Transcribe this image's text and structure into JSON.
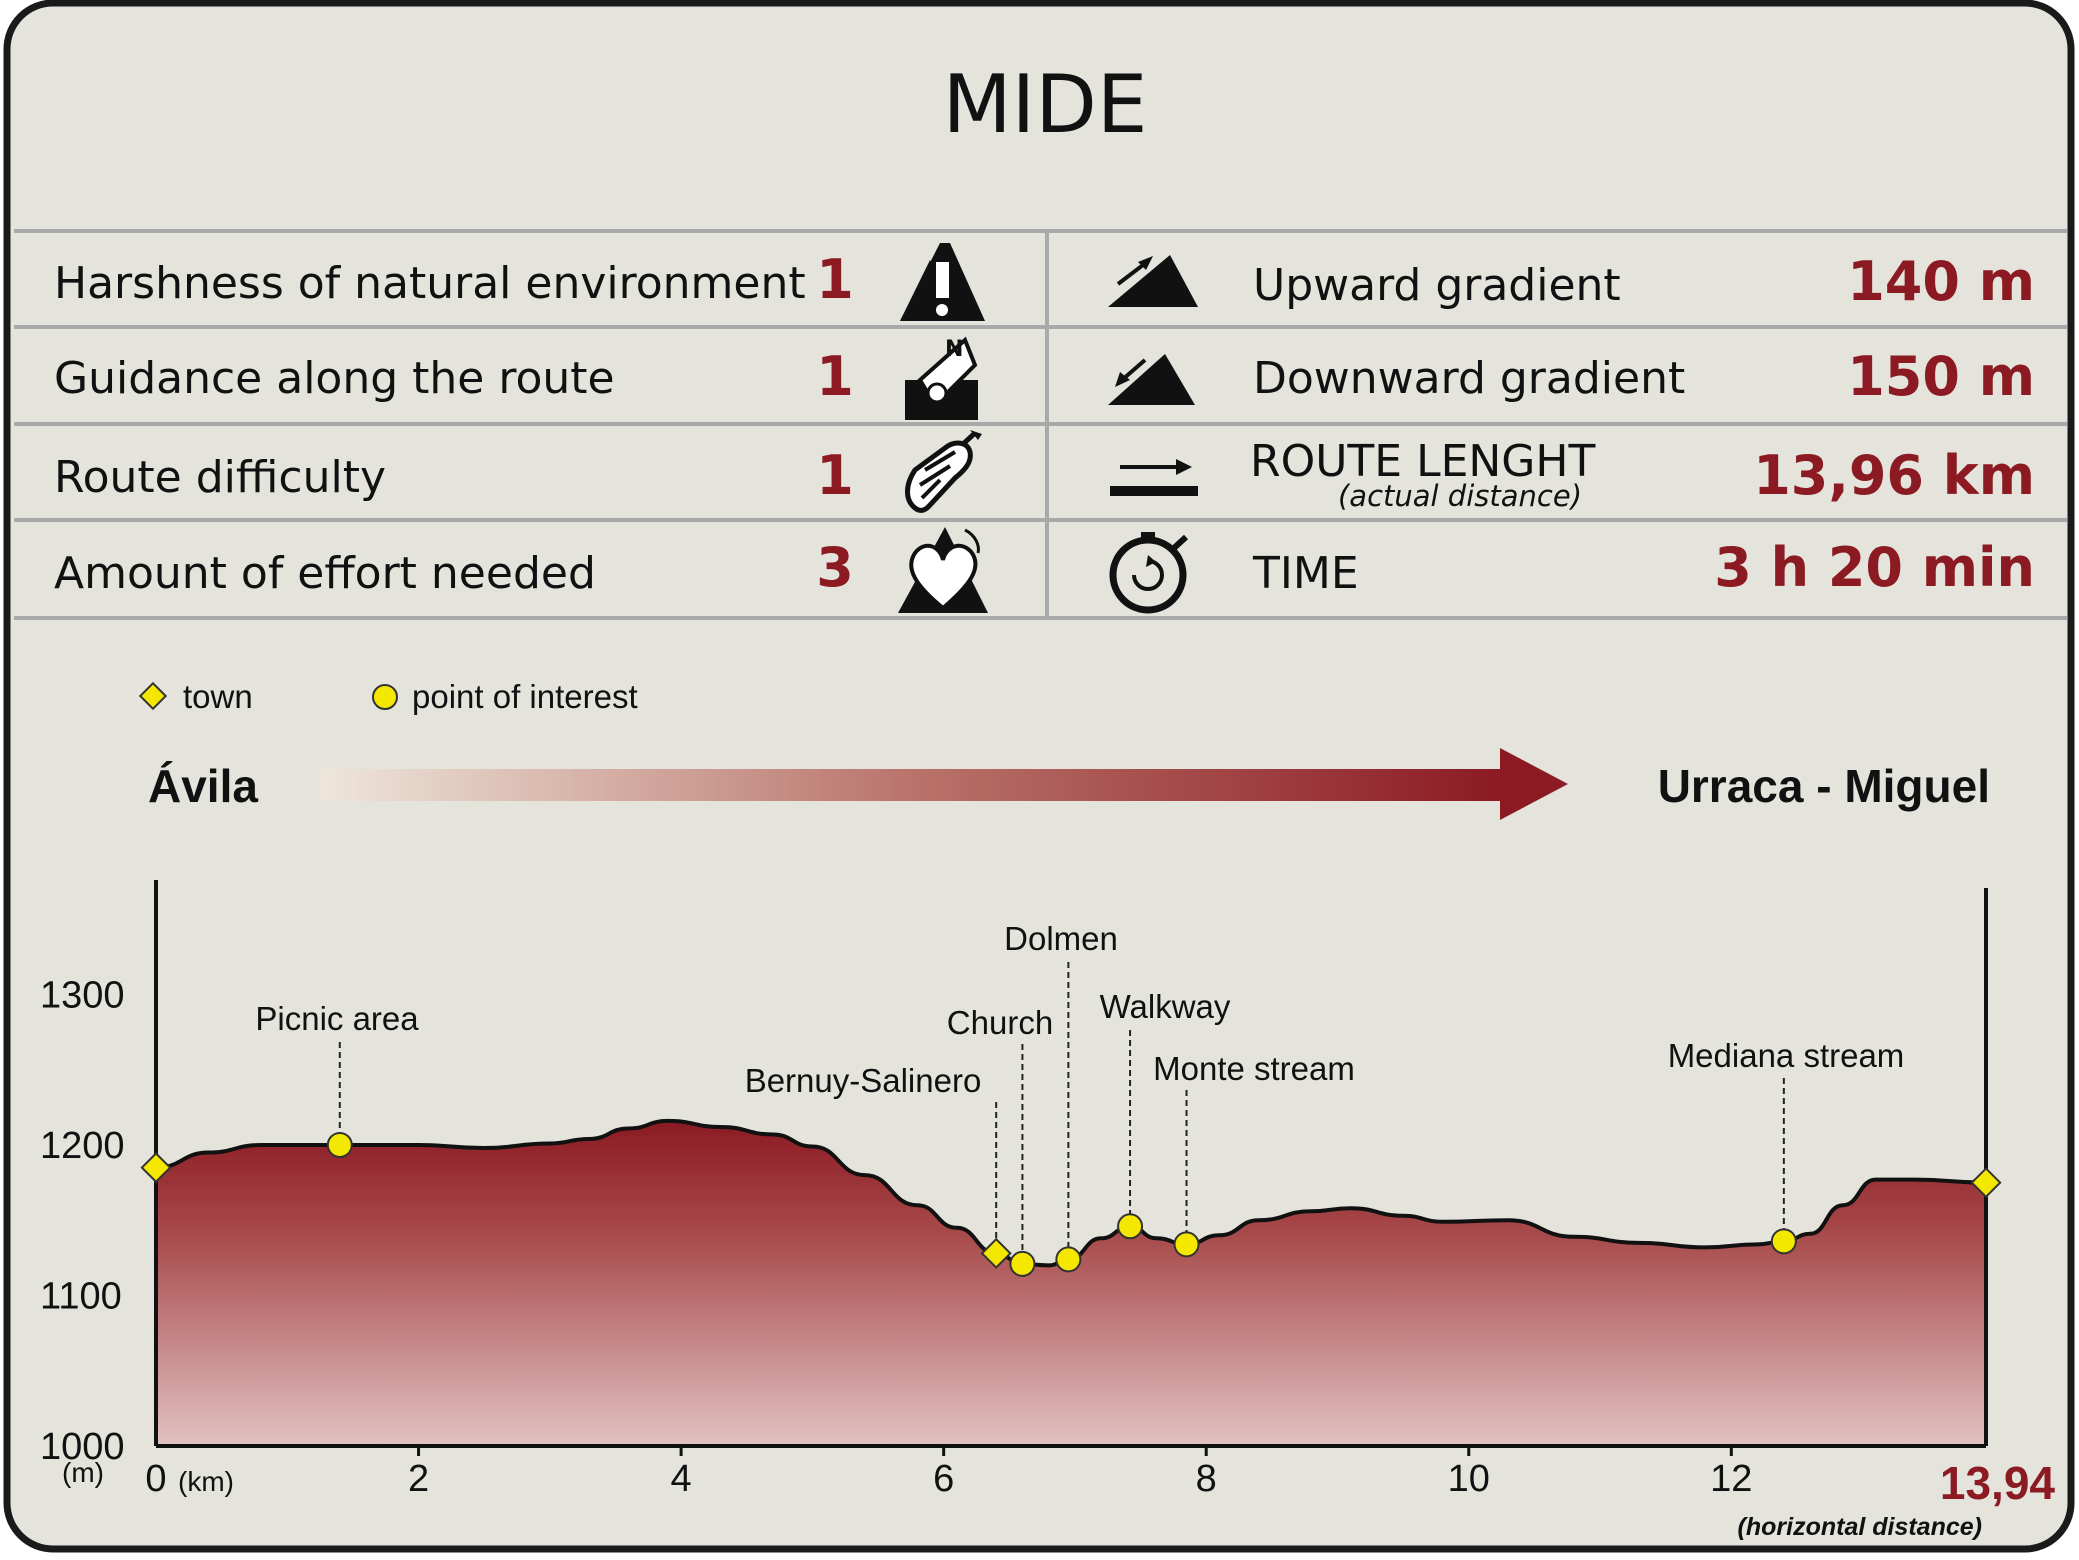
{
  "title": "MIDE",
  "mide": {
    "left": [
      {
        "label": "Harshness of natural environment",
        "value": "1",
        "icon": "warning-mountain-icon"
      },
      {
        "label": "Guidance along the route",
        "value": "1",
        "icon": "compass-signpost-icon"
      },
      {
        "label": "Route difficulty",
        "value": "1",
        "icon": "boot-footprint-icon"
      },
      {
        "label": "Amount of effort needed",
        "value": "3",
        "icon": "heart-mountain-icon"
      }
    ],
    "right": [
      {
        "label": "Upward gradient",
        "sublabel": "",
        "value": "140 m",
        "icon": "upward-gradient-icon"
      },
      {
        "label": "Downward gradient",
        "sublabel": "",
        "value": "150 m",
        "icon": "downward-gradient-icon"
      },
      {
        "label": "ROUTE LENGHT",
        "sublabel": "(actual distance)",
        "value": "13,96 km",
        "icon": "route-length-arrow-icon"
      },
      {
        "label": "TIME",
        "sublabel": "",
        "value": "3 h 20 min",
        "icon": "stopwatch-icon"
      }
    ]
  },
  "legend": {
    "town": "town",
    "poi": "point of interest"
  },
  "route": {
    "start": "Ávila",
    "end": "Urraca - Miguel"
  },
  "colors": {
    "accent": "#8b1a22",
    "background": "#e4e4dc",
    "marker": "#f5e800"
  },
  "chart_data": {
    "type": "area",
    "xlabel": "(km)",
    "ylabel": "(m)",
    "xlim": [
      0,
      13.94
    ],
    "ylim": [
      1000,
      1375
    ],
    "x_ticks": [
      "0",
      "2",
      "4",
      "6",
      "8",
      "10",
      "12"
    ],
    "y_ticks": [
      "1300",
      "1200",
      "1100",
      "1000"
    ],
    "end_distance": "13,94",
    "end_note": "(horizontal distance)",
    "profile": [
      [
        0,
        1185
      ],
      [
        0.4,
        1195
      ],
      [
        0.8,
        1200
      ],
      [
        1.4,
        1200
      ],
      [
        2.0,
        1200
      ],
      [
        2.5,
        1198
      ],
      [
        3.0,
        1201
      ],
      [
        3.3,
        1204
      ],
      [
        3.6,
        1211
      ],
      [
        3.9,
        1216
      ],
      [
        4.3,
        1212
      ],
      [
        4.7,
        1207
      ],
      [
        5.0,
        1199
      ],
      [
        5.4,
        1180
      ],
      [
        5.8,
        1160
      ],
      [
        6.1,
        1145
      ],
      [
        6.4,
        1128
      ],
      [
        6.6,
        1121
      ],
      [
        6.8,
        1120
      ],
      [
        6.95,
        1124
      ],
      [
        7.2,
        1138
      ],
      [
        7.42,
        1146
      ],
      [
        7.62,
        1138
      ],
      [
        7.85,
        1134
      ],
      [
        8.1,
        1140
      ],
      [
        8.4,
        1150
      ],
      [
        8.8,
        1156
      ],
      [
        9.1,
        1158
      ],
      [
        9.5,
        1153
      ],
      [
        9.8,
        1149
      ],
      [
        10.3,
        1150
      ],
      [
        10.8,
        1139
      ],
      [
        11.3,
        1135
      ],
      [
        11.8,
        1132
      ],
      [
        12.2,
        1134
      ],
      [
        12.4,
        1136
      ],
      [
        12.6,
        1141
      ],
      [
        12.85,
        1160
      ],
      [
        13.1,
        1177
      ],
      [
        13.4,
        1177
      ],
      [
        13.94,
        1175
      ]
    ],
    "points": [
      {
        "name": "",
        "type": "town",
        "x": 0,
        "y": 1185
      },
      {
        "name": "Picnic area",
        "type": "poi",
        "x": 1.4,
        "y": 1200
      },
      {
        "name": "Bernuy-Salinero",
        "type": "town",
        "x": 6.4,
        "y": 1128
      },
      {
        "name": "Church",
        "type": "poi",
        "x": 6.6,
        "y": 1121
      },
      {
        "name": "Dolmen",
        "type": "poi",
        "x": 6.95,
        "y": 1124
      },
      {
        "name": "Walkway",
        "type": "poi",
        "x": 7.42,
        "y": 1146
      },
      {
        "name": "Monte stream",
        "type": "poi",
        "x": 7.85,
        "y": 1134
      },
      {
        "name": "Mediana stream",
        "type": "poi",
        "x": 12.4,
        "y": 1136
      },
      {
        "name": "",
        "type": "town",
        "x": 13.94,
        "y": 1175
      }
    ]
  }
}
